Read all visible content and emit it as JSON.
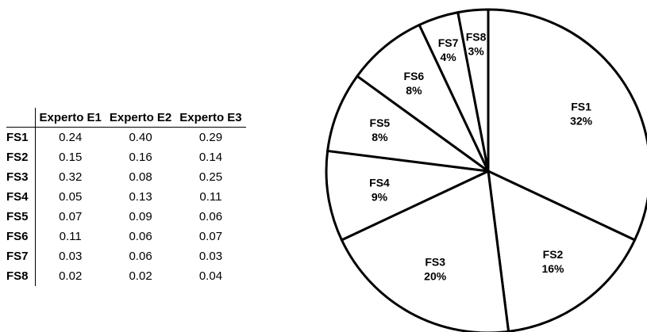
{
  "table": {
    "headers": [
      "",
      "Experto E1",
      "Experto E2",
      "Experto E3"
    ],
    "rows": [
      {
        "label": "FS1",
        "values": [
          "0.24",
          "0.40",
          "0.29"
        ]
      },
      {
        "label": "FS2",
        "values": [
          "0.15",
          "0.16",
          "0.14"
        ]
      },
      {
        "label": "FS3",
        "values": [
          "0.32",
          "0.08",
          "0.25"
        ]
      },
      {
        "label": "FS4",
        "values": [
          "0.05",
          "0.13",
          "0.11"
        ]
      },
      {
        "label": "FS5",
        "values": [
          "0.07",
          "0.09",
          "0.06"
        ]
      },
      {
        "label": "FS6",
        "values": [
          "0.11",
          "0.06",
          "0.07"
        ]
      },
      {
        "label": "FS7",
        "values": [
          "0.03",
          "0.06",
          "0.03"
        ]
      },
      {
        "label": "FS8",
        "values": [
          "0.02",
          "0.02",
          "0.04"
        ]
      }
    ]
  },
  "chart_data": {
    "type": "pie",
    "categories": [
      "FS1",
      "FS2",
      "FS3",
      "FS4",
      "FS5",
      "FS6",
      "FS7",
      "FS8"
    ],
    "values": [
      32,
      16,
      20,
      9,
      8,
      8,
      4,
      3
    ],
    "labels": [
      "32%",
      "16%",
      "20%",
      "9%",
      "8%",
      "8%",
      "4%",
      "3%"
    ],
    "start": "12 o'clock",
    "direction": "clockwise",
    "colors": {
      "fill": "#ffffff",
      "stroke": "#000000"
    }
  }
}
